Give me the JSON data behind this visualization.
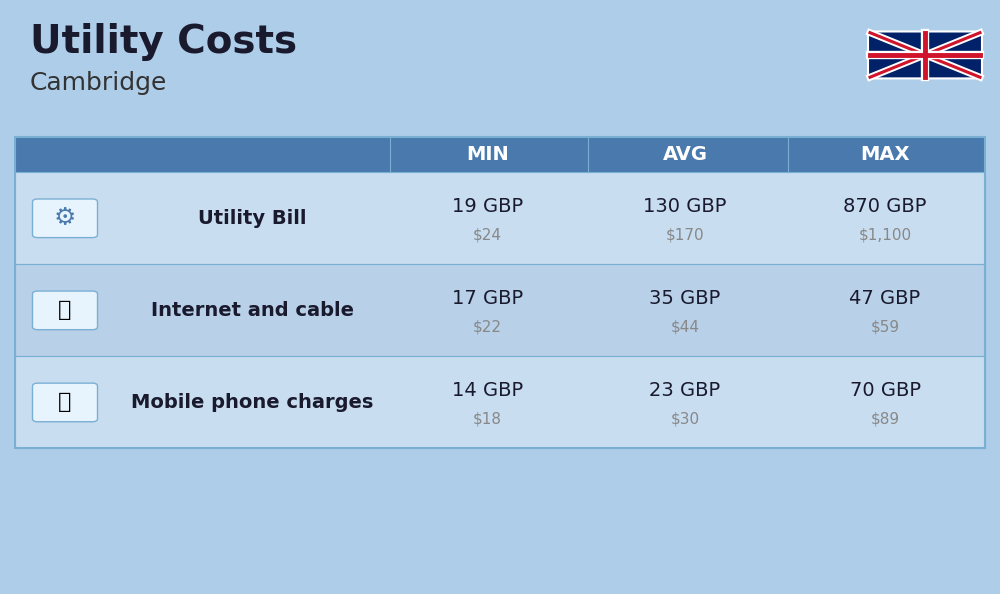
{
  "title": "Utility Costs",
  "subtitle": "Cambridge",
  "background_color": "#aecde8",
  "header_bg_color": "#4a7aad",
  "header_text_color": "#ffffff",
  "row_bg_color_1": "#c8ddf0",
  "row_bg_color_2": "#b8d0e8",
  "cell_border_color": "#7aafd4",
  "columns": [
    "",
    "",
    "MIN",
    "AVG",
    "MAX"
  ],
  "rows": [
    {
      "label": "Utility Bill",
      "min_gbp": "19 GBP",
      "min_usd": "$24",
      "avg_gbp": "130 GBP",
      "avg_usd": "$170",
      "max_gbp": "870 GBP",
      "max_usd": "$1,100",
      "icon": "utility"
    },
    {
      "label": "Internet and cable",
      "min_gbp": "17 GBP",
      "min_usd": "$22",
      "avg_gbp": "35 GBP",
      "avg_usd": "$44",
      "max_gbp": "47 GBP",
      "max_usd": "$59",
      "icon": "internet"
    },
    {
      "label": "Mobile phone charges",
      "min_gbp": "14 GBP",
      "min_usd": "$18",
      "avg_gbp": "23 GBP",
      "avg_usd": "$30",
      "max_gbp": "70 GBP",
      "max_usd": "$89",
      "icon": "mobile"
    }
  ],
  "title_fontsize": 28,
  "subtitle_fontsize": 18,
  "header_fontsize": 14,
  "label_fontsize": 14,
  "value_fontsize": 14,
  "usd_fontsize": 11
}
